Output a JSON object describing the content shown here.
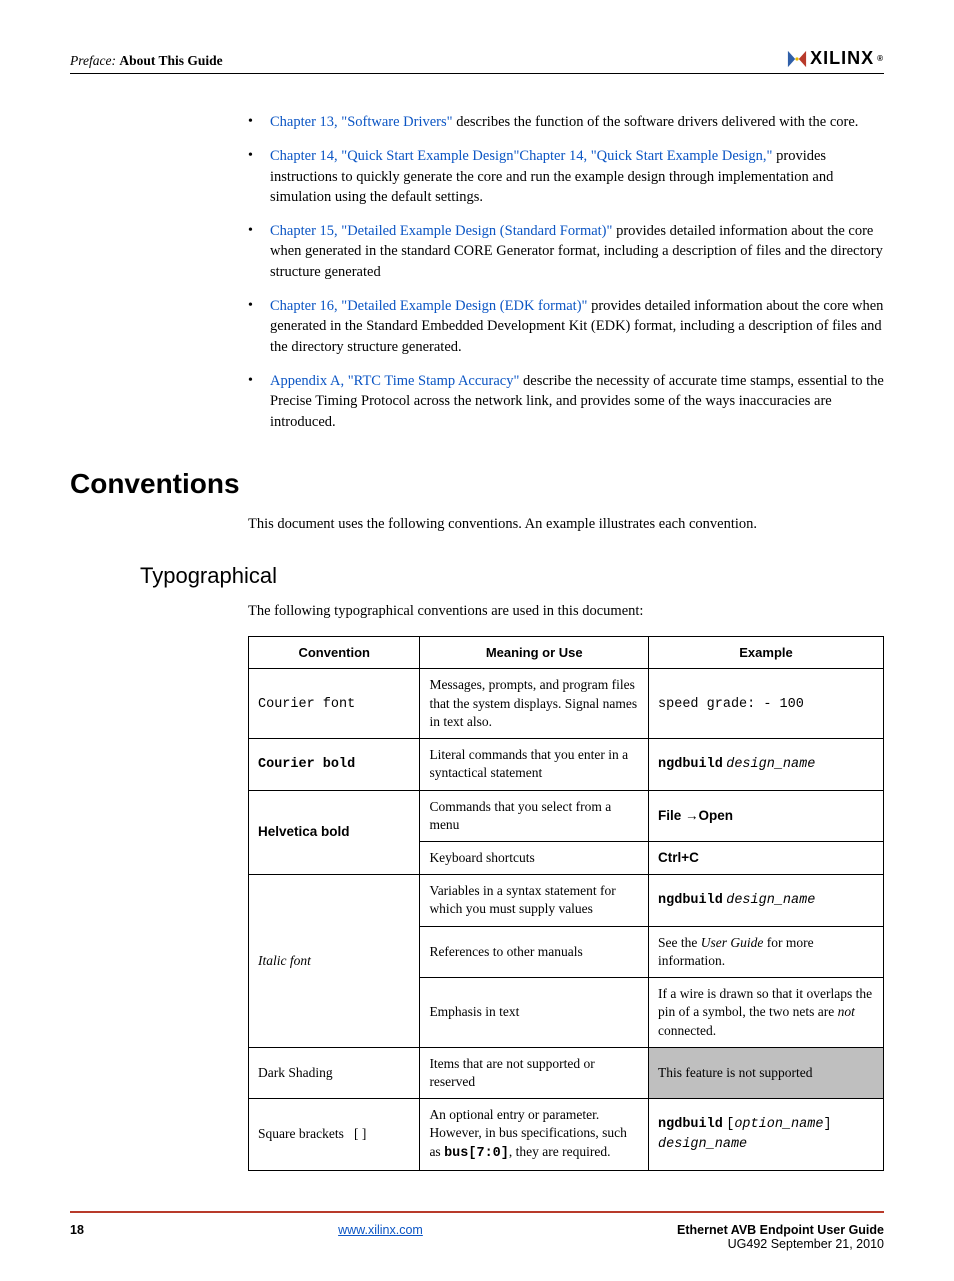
{
  "header": {
    "preface": "Preface:",
    "title": "About This Guide",
    "logo_text": "XILINX",
    "logo_colors": {
      "left": "#2f5fa8",
      "right": "#b83a2a",
      "dot": "#e6b800"
    }
  },
  "bullets": [
    {
      "link": "Chapter 13, \"Software Drivers\"",
      "rest": " describes the function of the software drivers delivered with the core."
    },
    {
      "link": "Chapter 14, \"Quick Start Example Design\"Chapter 14, \"Quick Start Example Design,\"",
      "rest": " provides instructions to quickly generate the core and run the example design through implementation and simulation using the default settings."
    },
    {
      "link": "Chapter 15, \"Detailed Example Design (Standard Format)\"",
      "rest": " provides detailed information about the core when generated in the standard CORE Generator format, including a description of files and the directory structure generated"
    },
    {
      "link": "Chapter 16, \"Detailed Example Design (EDK format)\"",
      "rest": " provides detailed information about the core when generated in the Standard Embedded Development Kit (EDK) format, including a description of files and the directory structure generated."
    },
    {
      "link": "Appendix A, \"RTC Time Stamp Accuracy\"",
      "rest": " describe the necessity of accurate time stamps, essential to the Precise Timing Protocol across the network link, and provides some of the ways inaccuracies are introduced."
    }
  ],
  "conventions": {
    "heading": "Conventions",
    "intro": "This document uses the following conventions. An example illustrates each convention.",
    "sub_heading": "Typographical",
    "sub_intro": "The following typographical conventions are used in this document:"
  },
  "table": {
    "headers": [
      "Convention",
      "Meaning or Use",
      "Example"
    ],
    "rows": {
      "r1": {
        "conv_html": "<span class='courier'>Courier font</span>",
        "mean": "Messages, prompts, and program files that the system displays. Signal names in text also.",
        "ex_html": "<span class='courier'>speed grade: - 100</span>"
      },
      "r2": {
        "conv_html": "<span class='cbold'>Courier bold</span>",
        "mean": "Literal commands that you enter in a syntactical statement",
        "ex_html": "<span class='cbold'>ngdbuild</span> <span class='citalic'>design_name</span>"
      },
      "r3": {
        "conv_html": "<span class='hbold'>Helvetica bold</span>",
        "mean1": "Commands that you select from a menu",
        "ex1_html": "<span class='hbold'>File →Open</span>",
        "mean2": "Keyboard shortcuts",
        "ex2_html": "<span class='hbold'>Ctrl+C</span>"
      },
      "r4": {
        "conv_html": "<span class='ital'>Italic font</span>",
        "mean1": "Variables in a syntax statement for which you must supply values",
        "ex1_html": "<span class='cbold'>ngdbuild</span> <span class='citalic'>design_name</span>",
        "mean2": "References to other manuals",
        "ex2_html": "See the <span class='ital'>User Guide</span> for more information.",
        "mean3": "Emphasis in text",
        "ex3_html": "If a wire is drawn so that it overlaps the pin of a symbol, the two nets are <span class='ital'>not</span> connected."
      },
      "r5": {
        "conv": "Dark Shading",
        "mean": "Items that are not supported or reserved",
        "ex": "This feature is not supported"
      },
      "r6": {
        "conv_html": "Square brackets&nbsp;&nbsp;&nbsp;[ ]",
        "mean_html": "An optional entry or parameter. However, in bus specifications, such as <span class='cbold'>bus[7:0]</span>, they are required.",
        "ex_html": "<span class='cbold'>ngdbuild</span> <span class='courier'>[</span><span class='citalic'>option_name</span><span class='courier'>]</span> <span class='citalic'>design_name</span>"
      }
    }
  },
  "footer": {
    "page": "18",
    "url": "www.xilinx.com",
    "doc_title": "Ethernet AVB Endpoint User Guide",
    "doc_rev": "UG492 September 21, 2010",
    "rule_color": "#b83a2a"
  }
}
